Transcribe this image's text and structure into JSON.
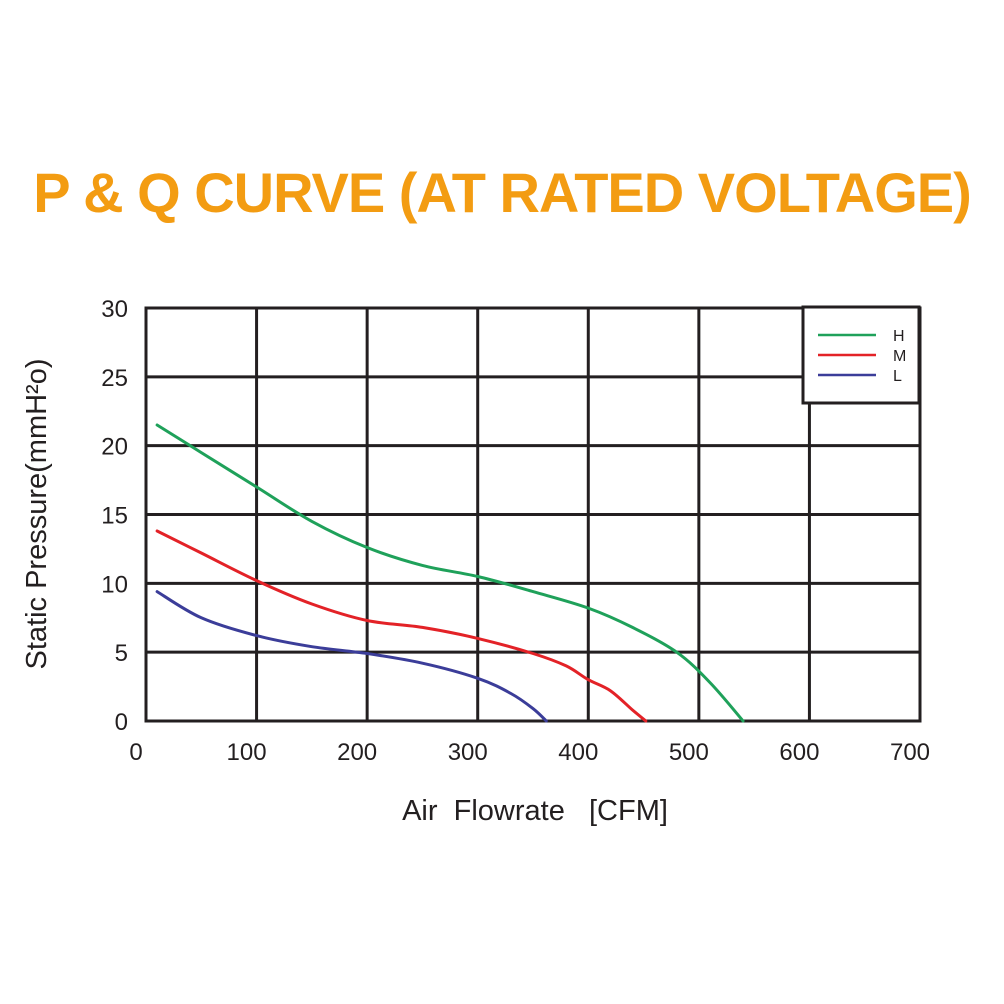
{
  "title": "P & Q CURVE (AT RATED VOLTAGE)",
  "colors": {
    "title": "#f39c12",
    "grid": "#231f20",
    "text": "#231f20",
    "H": "#1fa15a",
    "M": "#e32227",
    "L": "#3b3d99"
  },
  "chart_data": {
    "type": "line",
    "xlabel": "Air  Flowrate   [CFM]",
    "ylabel": "Static Pressure(mmH²o)",
    "xlim": [
      0,
      700
    ],
    "ylim": [
      0,
      30
    ],
    "x_ticks": [
      0,
      100,
      200,
      300,
      400,
      500,
      600,
      700
    ],
    "y_ticks": [
      0,
      5,
      10,
      15,
      20,
      25,
      30
    ],
    "grid": true,
    "legend_position": "top-right",
    "series": [
      {
        "name": "H",
        "x": [
          10,
          50,
          100,
          150,
          200,
          250,
          300,
          350,
          400,
          440,
          480,
          510,
          540
        ],
        "y": [
          21.5,
          19.5,
          17,
          14.5,
          12.6,
          11.3,
          10.5,
          9.4,
          8.2,
          6.8,
          5,
          2.8,
          0
        ]
      },
      {
        "name": "M",
        "x": [
          10,
          50,
          100,
          150,
          200,
          250,
          300,
          350,
          380,
          400,
          420,
          440,
          452
        ],
        "y": [
          13.8,
          12.2,
          10.2,
          8.5,
          7.3,
          6.8,
          6,
          4.9,
          4,
          3,
          2.2,
          0.8,
          0
        ]
      },
      {
        "name": "L",
        "x": [
          10,
          50,
          100,
          150,
          200,
          250,
          300,
          330,
          350,
          362
        ],
        "y": [
          9.4,
          7.5,
          6.2,
          5.4,
          4.9,
          4.2,
          3.1,
          2,
          0.9,
          0
        ]
      }
    ]
  }
}
